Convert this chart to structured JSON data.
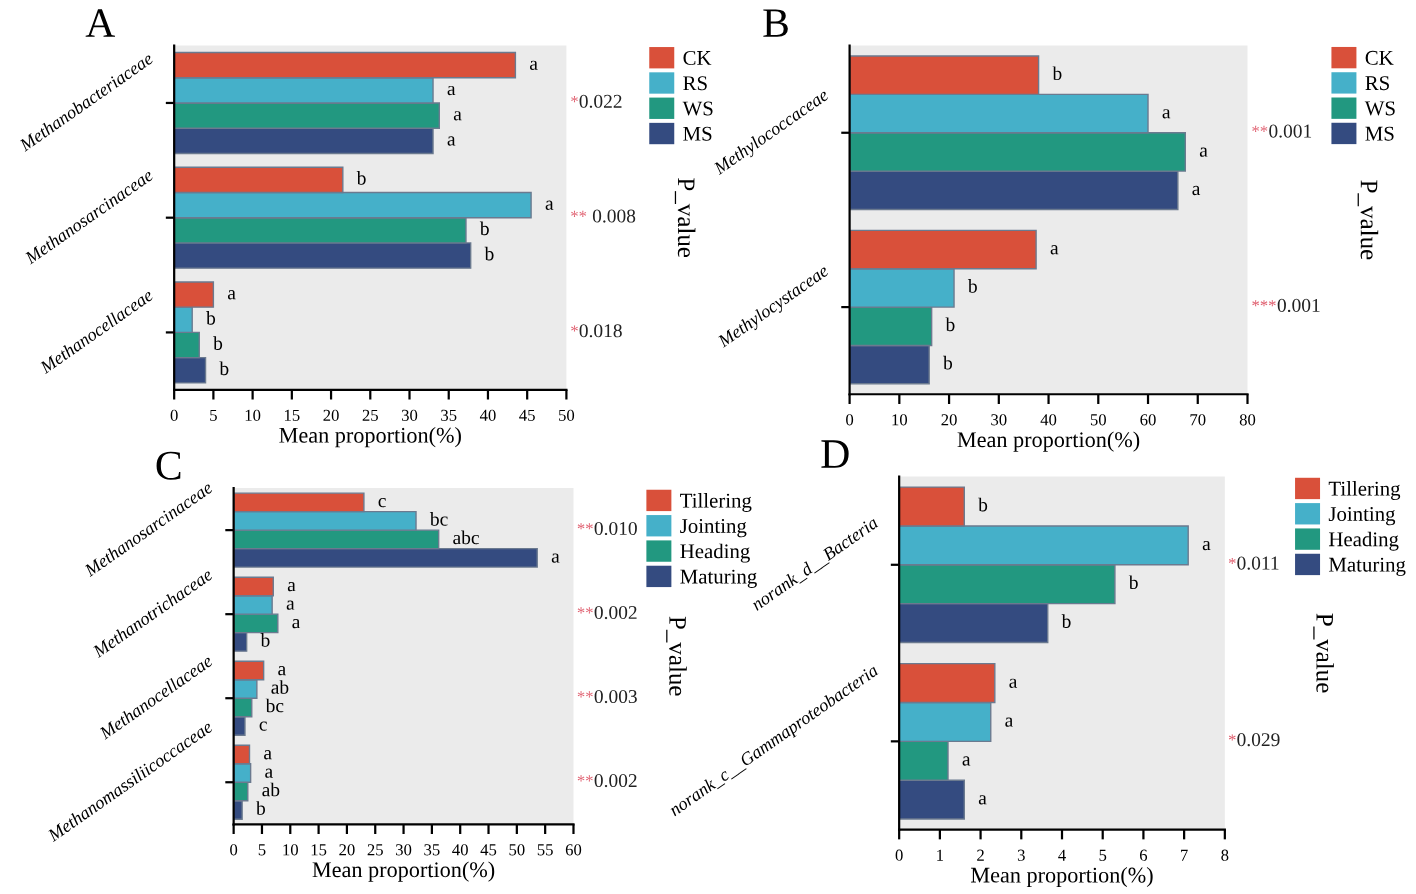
{
  "chart_data": [
    {
      "type": "bar",
      "orientation": "horizontal",
      "title": "A",
      "xlabel": "Mean proportion(%)",
      "y2label": "P_value",
      "categories": [
        "Methanobacteriaceae",
        "Methanosarcinaceae",
        "Methanocellaceae"
      ],
      "xlim": [
        0,
        50
      ],
      "xticks": [
        0,
        5,
        10,
        15,
        20,
        25,
        30,
        35,
        40,
        45,
        50
      ],
      "legend": "top right",
      "annotations": [
        "*0.022",
        "** 0.008",
        "*0.018"
      ],
      "series": [
        {
          "name": "MS",
          "color": "#344b80",
          "values": [
            33,
            37.8,
            4
          ],
          "value_labels": [
            "a",
            "b",
            "b"
          ]
        },
        {
          "name": "WS",
          "color": "#229880",
          "values": [
            33.8,
            37.2,
            3.2
          ],
          "value_labels": [
            "a",
            "b",
            "b"
          ]
        },
        {
          "name": "RS",
          "color": "#45b0c9",
          "values": [
            33,
            45.5,
            2.3
          ],
          "value_labels": [
            "a",
            "a",
            "b"
          ]
        },
        {
          "name": "CK",
          "color": "#d9503a",
          "values": [
            43.5,
            21.5,
            5
          ],
          "value_labels": [
            "a",
            "b",
            "a"
          ]
        }
      ]
    },
    {
      "type": "bar",
      "orientation": "horizontal",
      "title": "B",
      "xlabel": "Mean proportion(%)",
      "y2label": "P_value",
      "categories": [
        "Methylococcaceae",
        "Methylocystaceae"
      ],
      "xlim": [
        0,
        80
      ],
      "xticks": [
        0,
        10,
        20,
        30,
        40,
        50,
        60,
        70,
        80
      ],
      "legend": "top right",
      "annotations": [
        "**0.001",
        "***0.001"
      ],
      "series": [
        {
          "name": "MS",
          "color": "#344b80",
          "values": [
            66,
            16
          ],
          "value_labels": [
            "a",
            "b"
          ]
        },
        {
          "name": "WS",
          "color": "#229880",
          "values": [
            67.5,
            16.5
          ],
          "value_labels": [
            "a",
            "b"
          ]
        },
        {
          "name": "RS",
          "color": "#45b0c9",
          "values": [
            60,
            21
          ],
          "value_labels": [
            "a",
            "b"
          ]
        },
        {
          "name": "CK",
          "color": "#d9503a",
          "values": [
            38,
            37.5
          ],
          "value_labels": [
            "b",
            "a"
          ]
        }
      ]
    },
    {
      "type": "bar",
      "orientation": "horizontal",
      "title": "C",
      "xlabel": "Mean proportion(%)",
      "y2label": "P_value",
      "categories": [
        "Methanosarcinaceae",
        "Methanotrichaceae",
        "Methanocellaceae",
        "Methanomassiliicoccaceae"
      ],
      "xlim": [
        0,
        60
      ],
      "xticks": [
        0,
        5,
        10,
        15,
        20,
        25,
        30,
        35,
        40,
        45,
        50,
        55,
        60
      ],
      "legend": "top right",
      "annotations": [
        "**0.010",
        "**0.002",
        "**0.003",
        "**0.002"
      ],
      "series": [
        {
          "name": "Maturing",
          "color": "#344b80",
          "values": [
            53.6,
            2.3,
            2,
            1.5
          ],
          "value_labels": [
            "a",
            "b",
            "c",
            "b"
          ]
        },
        {
          "name": "Heading",
          "color": "#229880",
          "values": [
            36.2,
            7.8,
            3.2,
            2.5
          ],
          "value_labels": [
            "abc",
            "a",
            "bc",
            "ab"
          ]
        },
        {
          "name": "Jointing",
          "color": "#45b0c9",
          "values": [
            32.2,
            6.8,
            4.1,
            3
          ],
          "value_labels": [
            "bc",
            "a",
            "ab",
            "a"
          ]
        },
        {
          "name": "Tillering",
          "color": "#d9503a",
          "values": [
            23,
            7,
            5.3,
            2.8
          ],
          "value_labels": [
            "c",
            "a",
            "a",
            "a"
          ]
        }
      ]
    },
    {
      "type": "bar",
      "orientation": "horizontal",
      "title": "D",
      "xlabel": "Mean proportion(%)",
      "y2label": "P_value",
      "categories": [
        "norank_d__Bacteria",
        "norank_c__Gammaproteobacteria"
      ],
      "xlim": [
        0,
        8
      ],
      "xticks": [
        0,
        1,
        2,
        3,
        4,
        5,
        6,
        7,
        8
      ],
      "legend": "top right",
      "annotations": [
        "*0.011",
        "*0.029"
      ],
      "series": [
        {
          "name": "Maturing",
          "color": "#344b80",
          "values": [
            3.65,
            1.6
          ],
          "value_labels": [
            "b",
            "a"
          ]
        },
        {
          "name": "Heading",
          "color": "#229880",
          "values": [
            5.3,
            1.2
          ],
          "value_labels": [
            "b",
            "a"
          ]
        },
        {
          "name": "Jointing",
          "color": "#45b0c9",
          "values": [
            7.1,
            2.25
          ],
          "value_labels": [
            "a",
            "a"
          ]
        },
        {
          "name": "Tillering",
          "color": "#d9503a",
          "values": [
            1.6,
            2.35
          ],
          "value_labels": [
            "b",
            "a"
          ]
        }
      ]
    }
  ]
}
